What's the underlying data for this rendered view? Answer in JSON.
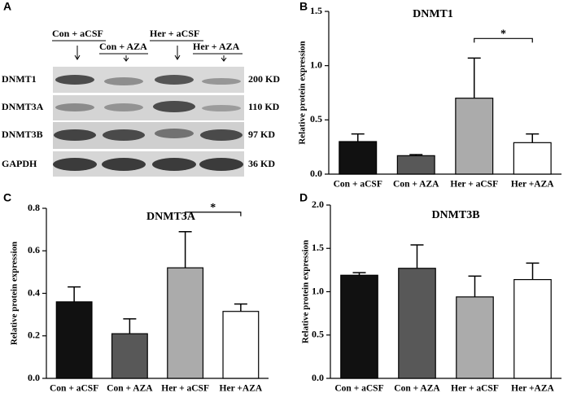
{
  "blot": {
    "panel": "A",
    "groups_top": [
      "Con + aCSF",
      "Her + aCSF"
    ],
    "groups_bottom": [
      "Con + AZA",
      "Her + AZA"
    ],
    "rows": [
      "DNMT1",
      "DNMT3A",
      "DNMT3B",
      "GAPDH"
    ],
    "sizes": [
      "200 KD",
      "110 KD",
      "97 KD",
      "36 KD"
    ]
  },
  "chart_data": [
    {
      "type": "bar",
      "panel": "B",
      "title": "DNMT1",
      "y_label": "Relative protein expression",
      "categories": [
        "Con + aCSF",
        "Con + AZA",
        "Her + aCSF",
        "Her +AZA"
      ],
      "values": [
        0.3,
        0.17,
        0.7,
        0.29
      ],
      "errors": [
        0.07,
        0.01,
        0.37,
        0.08
      ],
      "colors": [
        "#111111",
        "#585858",
        "#ababab",
        "#ffffff"
      ],
      "ylim": [
        0,
        1.5
      ],
      "yticks": [
        {
          "value": 0,
          "label": "0.0"
        },
        0.5,
        {
          "value": 1,
          "label": "1.0"
        },
        1.5
      ],
      "significance": {
        "label": "*",
        "between": [
          "Her + aCSF",
          "Her +AZA"
        ]
      }
    },
    {
      "type": "bar",
      "panel": "C",
      "title": "DNMT3A",
      "y_label": "Relative protein expression",
      "categories": [
        "Con + aCSF",
        "Con + AZA",
        "Her + aCSF",
        "Her +AZA"
      ],
      "values": [
        0.36,
        0.21,
        0.52,
        0.315
      ],
      "errors": [
        0.07,
        0.07,
        0.17,
        0.035
      ],
      "colors": [
        "#111111",
        "#585858",
        "#ababab",
        "#ffffff"
      ],
      "ylim": [
        0,
        0.8
      ],
      "yticks": [
        {
          "value": 0,
          "label": "0.0"
        },
        0.2,
        0.4,
        0.6,
        0.8
      ],
      "significance": {
        "label": "*",
        "between": [
          "Her + aCSF",
          "Her +AZA"
        ]
      }
    },
    {
      "type": "bar",
      "panel": "D",
      "title": "DNMT3B",
      "y_label": "Relative protein expression",
      "categories": [
        "Con + aCSF",
        "Con + AZA",
        "Her + aCSF",
        "Her +AZA"
      ],
      "values": [
        1.19,
        1.27,
        0.94,
        1.14
      ],
      "errors": [
        0.03,
        0.27,
        0.24,
        0.19
      ],
      "colors": [
        "#111111",
        "#585858",
        "#ababab",
        "#ffffff"
      ],
      "ylim": [
        0,
        2
      ],
      "yticks": [
        {
          "value": 0,
          "label": "0.0"
        },
        0.5,
        {
          "value": 1,
          "label": "1.0"
        },
        1.5,
        {
          "value": 2,
          "label": "2.0"
        }
      ]
    }
  ]
}
